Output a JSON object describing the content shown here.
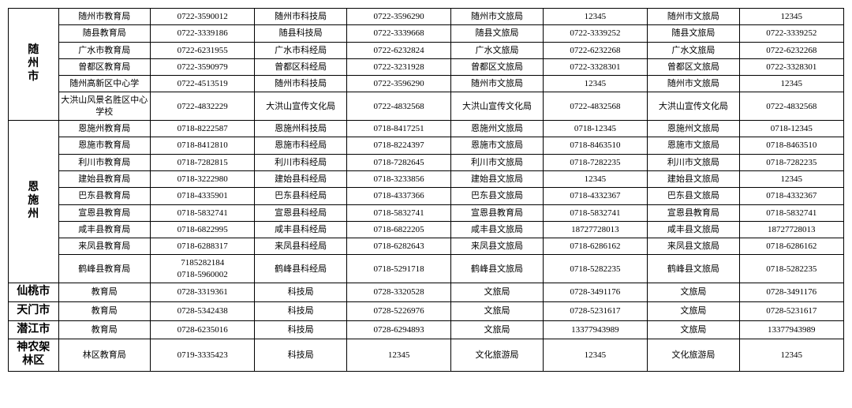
{
  "regions": [
    {
      "name": "随<br>州<br>市",
      "rows": [
        [
          "随州市教育局",
          "0722-3590012",
          "随州市科技局",
          "0722-3596290",
          "随州市文旅局",
          "12345",
          "随州市文旅局",
          "12345"
        ],
        [
          "随县教育局",
          "0722-3339186",
          "随县科技局",
          "0722-3339668",
          "随县文旅局",
          "0722-3339252",
          "随县文旅局",
          "0722-3339252"
        ],
        [
          "广水市教育局",
          "0722-6231955",
          "广水市科经局",
          "0722-6232824",
          "广水文旅局",
          "0722-6232268",
          "广水文旅局",
          "0722-6232268"
        ],
        [
          "曾都区教育局",
          "0722-3590979",
          "曾都区科经局",
          "0722-3231928",
          "曾都区文旅局",
          "0722-3328301",
          "曾都区文旅局",
          "0722-3328301"
        ],
        [
          "随州高新区中心学",
          "0722-4513519",
          "随州市科技局",
          "0722-3596290",
          "随州市文旅局",
          "12345",
          "随州市文旅局",
          "12345"
        ],
        [
          "大洪山风景名胜区中心学校",
          "0722-4832229",
          "大洪山宣传文化局",
          "0722-4832568",
          "大洪山宣传文化局",
          "0722-4832568",
          "大洪山宣传文化局",
          "0722-4832568"
        ]
      ]
    },
    {
      "name": "恩<br>施<br>州",
      "rows": [
        [
          "恩施州教育局",
          "0718-8222587",
          "恩施州科技局",
          "0718-8417251",
          "恩施州文旅局",
          "0718-12345",
          "恩施州文旅局",
          "0718-12345"
        ],
        [
          "恩施市教育局",
          "0718-8412810",
          "恩施市科经局",
          "0718-8224397",
          "恩施市文旅局",
          "0718-8463510",
          "恩施市文旅局",
          "0718-8463510"
        ],
        [
          "利川市教育局",
          "0718-7282815",
          "利川市科经局",
          "0718-7282645",
          "利川市文旅局",
          "0718-7282235",
          "利川市文旅局",
          "0718-7282235"
        ],
        [
          "建始县教育局",
          "0718-3222980",
          "建始县科经局",
          "0718-3233856",
          "建始县文旅局",
          "12345",
          "建始县文旅局",
          "12345"
        ],
        [
          "巴东县教育局",
          "0718-4335901",
          "巴东县科经局",
          "0718-4337366",
          "巴东县文旅局",
          "0718-4332367",
          "巴东县文旅局",
          "0718-4332367"
        ],
        [
          "宣恩县教育局",
          "0718-5832741",
          "宣恩县科经局",
          "0718-5832741",
          "宣恩县教育局",
          "0718-5832741",
          "宣恩县教育局",
          "0718-5832741"
        ],
        [
          "咸丰县教育局",
          "0718-6822995",
          "咸丰县科经局",
          "0718-6822205",
          "咸丰县文旅局",
          "18727728013",
          "咸丰县文旅局",
          "18727728013"
        ],
        [
          "来凤县教育局",
          "0718-6288317",
          "来凤县科经局",
          "0718-6282643",
          "来凤县文旅局",
          "0718-6286162",
          "来凤县文旅局",
          "0718-6286162"
        ],
        [
          "鹤峰县教育局",
          "7185282184<br>0718-5960002",
          "鹤峰县科经局",
          "0718-5291718",
          "鹤峰县文旅局",
          "0718-5282235",
          "鹤峰县文旅局",
          "0718-5282235"
        ]
      ]
    },
    {
      "name": "仙桃市",
      "rows": [
        [
          "教育局",
          "0728-3319361",
          "科技局",
          "0728-3320528",
          "文旅局",
          "0728-3491176",
          "文旅局",
          "0728-3491176"
        ]
      ]
    },
    {
      "name": "天门市",
      "rows": [
        [
          "教育局",
          "0728-5342438",
          "科技局",
          "0728-5226976",
          "文旅局",
          "0728-5231617",
          "文旅局",
          "0728-5231617"
        ]
      ]
    },
    {
      "name": "潜江市",
      "rows": [
        [
          "教育局",
          "0728-6235016",
          "科技局",
          "0728-6294893",
          "文旅局",
          "13377943989",
          "文旅局",
          "13377943989"
        ]
      ]
    },
    {
      "name": "神农架<br>林区",
      "rows": [
        [
          "林区教育局",
          "0719-3335423",
          "科技局",
          "12345",
          "文化旅游局",
          "12345",
          "文化旅游局",
          "12345"
        ]
      ]
    }
  ]
}
